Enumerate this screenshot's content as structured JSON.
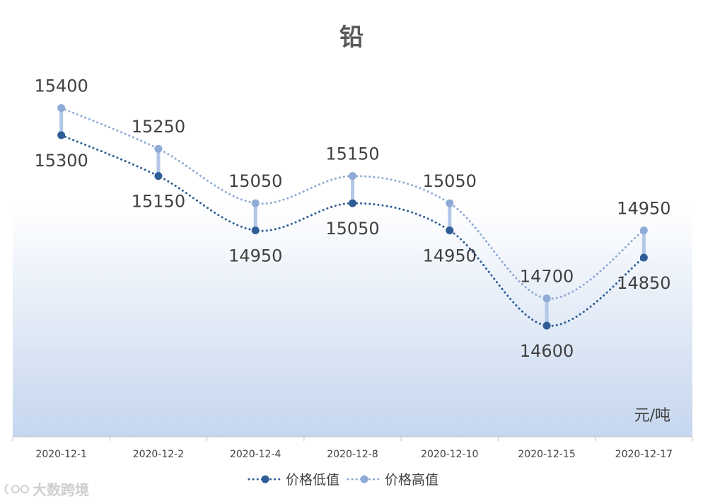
{
  "chart_data": {
    "type": "line",
    "title": "铅",
    "unit": "元/吨",
    "categories": [
      "2020-12-1",
      "2020-12-2",
      "2020-12-4",
      "2020-12-8",
      "2020-12-10",
      "2020-12-15",
      "2020-12-17"
    ],
    "series": [
      {
        "name": "价格低值",
        "values": [
          15300,
          15150,
          14950,
          15050,
          14950,
          14600,
          14850
        ],
        "color": "#2f5d96"
      },
      {
        "name": "价格高值",
        "values": [
          15400,
          15250,
          15050,
          15150,
          15050,
          14700,
          14950
        ],
        "color": "#8eaad6"
      }
    ],
    "high_low_line_color": "#b4c7e7",
    "background_gradient": [
      "#ffffff",
      "#c5d6ee"
    ],
    "line_style": "dotted-smooth",
    "legend_position": "bottom",
    "grid": false
  },
  "watermark": {
    "text": "大数跨境"
  }
}
